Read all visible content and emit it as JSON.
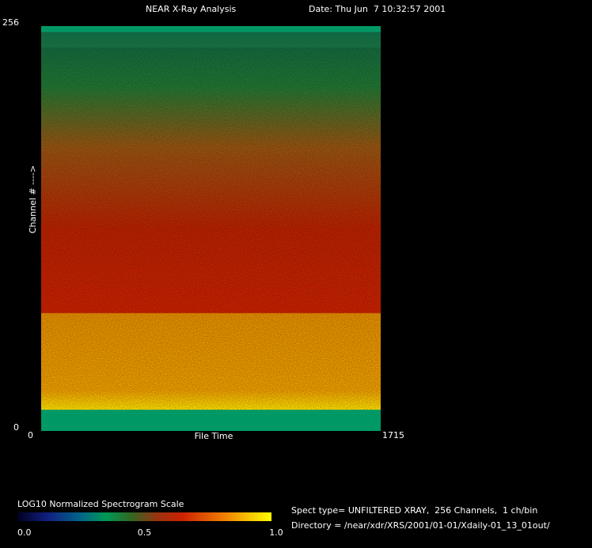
{
  "chart_data": {
    "type": "spectrogram",
    "title": "NEAR X-Ray Analysis",
    "date": "Date: Thu Jun  7 10:32:57 2001",
    "x_label": "File Time",
    "y_label": "Channel # ---->",
    "xlim": [
      0,
      1715
    ],
    "xticks": [
      0,
      1715
    ],
    "ylim": [
      0,
      256
    ],
    "yticks": [
      0,
      256
    ],
    "colorbar": {
      "title": "LOG10 Normalized Spectrogram Scale",
      "lim": [
        0,
        1
      ],
      "ticks": [
        {
          "value": 0,
          "label": "0.0"
        },
        {
          "value": 0.5,
          "label": "0.5"
        },
        {
          "value": 1,
          "label": "1.0"
        }
      ]
    },
    "info": [
      "Spect type= UNFILTERED XRAY,  256 Channels,  1 ch/bin",
      "Directory = /near/xdr/XRS/2001/01-01/Xdaily-01_13_01out/"
    ]
  }
}
